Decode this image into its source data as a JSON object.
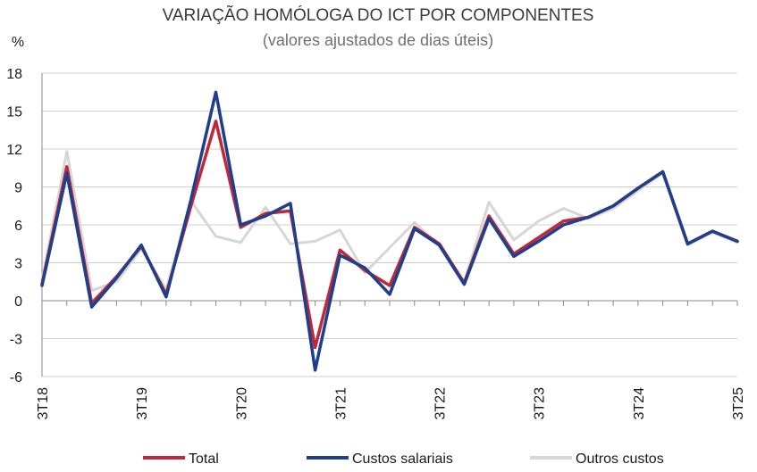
{
  "chart_data": {
    "type": "line",
    "title": "VARIAÇÃO HOMÓLOGA DO ICT POR COMPONENTES",
    "subtitle": "(valores ajustados de dias úteis)",
    "ylabel": "%",
    "xlabel": "",
    "ylim": [
      -6,
      18
    ],
    "yticks": [
      -6,
      -3,
      0,
      3,
      6,
      9,
      12,
      15,
      18
    ],
    "grid": "horizontal",
    "legend_position": "bottom",
    "x": [
      "3T18",
      "4T18",
      "1T19",
      "2T19",
      "3T19",
      "4T19",
      "1T20",
      "2T20",
      "3T20",
      "4T20",
      "1T21",
      "2T21",
      "3T21",
      "4T21",
      "1T22",
      "2T22",
      "3T22",
      "4T22",
      "1T23",
      "2T23",
      "3T23",
      "4T23",
      "1T24",
      "2T24",
      "3T24",
      "4T24",
      "1T25",
      "2T25",
      "3T25"
    ],
    "xtick_labels": [
      "3T18",
      "3T19",
      "3T20",
      "3T21",
      "3T22",
      "3T23",
      "3T24",
      "3T25"
    ],
    "series": [
      {
        "name": "Total",
        "color": "#c0283a",
        "values": [
          1.3,
          10.6,
          -0.2,
          1.9,
          4.3,
          0.5,
          7.5,
          14.2,
          5.8,
          6.9,
          7.1,
          -3.7,
          4.0,
          2.4,
          1.2,
          5.8,
          4.5,
          1.4,
          6.7,
          3.7,
          5.0,
          6.3,
          6.6,
          7.5,
          8.9,
          10.2,
          4.5,
          5.5,
          4.7
        ]
      },
      {
        "name": "Custos salariais",
        "color": "#1f3f8b",
        "values": [
          1.2,
          10.1,
          -0.5,
          1.8,
          4.4,
          0.3,
          8.0,
          16.5,
          6.0,
          6.7,
          7.7,
          -5.5,
          3.6,
          2.6,
          0.5,
          5.7,
          4.4,
          1.3,
          6.5,
          3.5,
          4.7,
          6.0,
          6.6,
          7.5,
          8.9,
          10.2,
          4.5,
          5.5,
          4.7
        ]
      },
      {
        "name": "Outros custos",
        "color": "#d6d6d6",
        "values": [
          1.6,
          11.8,
          0.8,
          1.5,
          4.1,
          0.9,
          7.9,
          5.1,
          4.6,
          7.4,
          4.5,
          4.7,
          5.6,
          2.2,
          4.2,
          6.2,
          4.3,
          1.5,
          7.8,
          4.8,
          6.3,
          7.3,
          6.5,
          7.3,
          8.7,
          10.1,
          4.4,
          5.4,
          4.6
        ]
      }
    ]
  }
}
